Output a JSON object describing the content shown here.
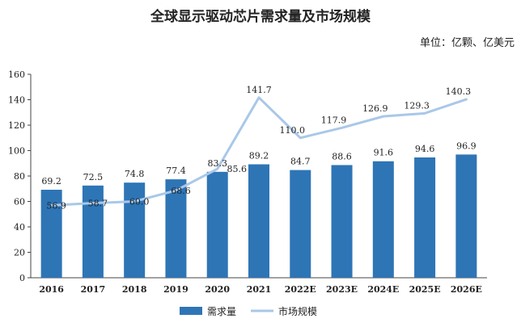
{
  "chart_data": {
    "type": "bar",
    "title": "全球显示驱动芯片需求量及市场规模",
    "unit_label": "单位：亿颗、亿美元",
    "categories": [
      "2016",
      "2017",
      "2018",
      "2019",
      "2020",
      "2021",
      "2022E",
      "2023E",
      "2024E",
      "2025E",
      "2026E"
    ],
    "series": [
      {
        "name": "需求量",
        "type": "bar",
        "color": "#2e75b6",
        "values": [
          69.2,
          72.5,
          74.8,
          77.4,
          83.3,
          89.2,
          84.7,
          88.6,
          91.6,
          94.6,
          96.9
        ]
      },
      {
        "name": "市场规模",
        "type": "line",
        "color": "#a9c8e8",
        "values": [
          56.9,
          58.7,
          60.0,
          68.6,
          85.6,
          141.7,
          110.0,
          117.9,
          126.9,
          129.3,
          140.3
        ]
      }
    ],
    "ylim": [
      0,
      160
    ],
    "yticks": [
      0,
      20,
      40,
      60,
      80,
      100,
      120,
      140,
      160
    ],
    "legend_position": "bottom"
  }
}
